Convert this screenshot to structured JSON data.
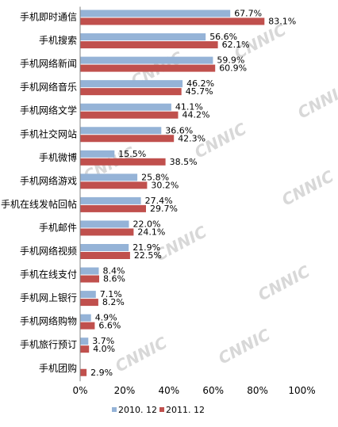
{
  "watermark": "CNNIC",
  "chart_data": {
    "type": "bar",
    "orientation": "horizontal",
    "categories": [
      "手机即时通信",
      "手机搜索",
      "手机网络新闻",
      "手机网络音乐",
      "手机网络文学",
      "手机社交网站",
      "手机微博",
      "手机网络游戏",
      "手机在线发帖回帖",
      "手机邮件",
      "手机网络视频",
      "手机在线支付",
      "手机网上银行",
      "手机网络购物",
      "手机旅行预订",
      "手机团购"
    ],
    "series": [
      {
        "name": "2010. 12",
        "color": "#95b3d7",
        "values": [
          67.7,
          56.6,
          59.9,
          46.2,
          41.1,
          36.6,
          15.5,
          25.8,
          27.4,
          22.0,
          21.9,
          8.4,
          7.1,
          4.9,
          3.7,
          null
        ],
        "labels": [
          "67.7%",
          "56.6%",
          "59.9%",
          "46.2%",
          "41.1%",
          "36.6%",
          "15.5%",
          "25.8%",
          "27.4%",
          "22.0%",
          "21.9%",
          "8.4%",
          "7.1%",
          "4.9%",
          "3.7%",
          ""
        ]
      },
      {
        "name": "2011. 12",
        "color": "#c0504d",
        "values": [
          83.1,
          62.1,
          60.9,
          45.7,
          44.2,
          42.3,
          38.5,
          30.2,
          29.7,
          24.1,
          22.5,
          8.6,
          8.2,
          6.6,
          4.0,
          2.9
        ],
        "labels": [
          "83.1%",
          "62.1%",
          "60.9%",
          "45.7%",
          "44.2%",
          "42.3%",
          "38.5%",
          "30.2%",
          "29.7%",
          "24.1%",
          "22.5%",
          "8.6%",
          "8.2%",
          "6.6%",
          "4.0%",
          "2.9%"
        ]
      }
    ],
    "xlim": [
      0,
      100
    ],
    "ticks": [
      0,
      20,
      40,
      60,
      80,
      100
    ],
    "tick_labels": [
      "0%",
      "20%",
      "40%",
      "60%",
      "80%",
      "100%"
    ],
    "grid": false,
    "legend_position": "bottom"
  }
}
